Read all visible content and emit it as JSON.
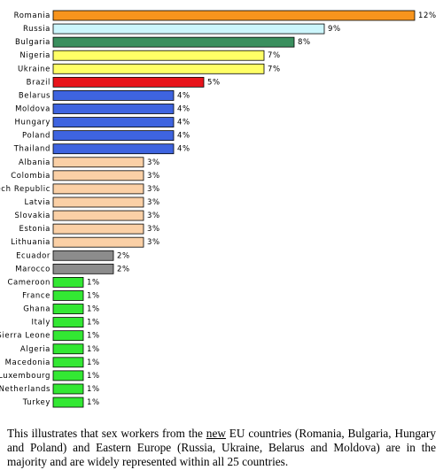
{
  "chart_data": {
    "type": "bar",
    "orientation": "horizontal",
    "categories": [
      "Romania",
      "Russia",
      "Bulgaria",
      "Nigeria",
      "Ukraine",
      "Brazil",
      "Belarus",
      "Moldova",
      "Hungary",
      "Poland",
      "Thailand",
      "Albania",
      "Colombia",
      "ech Republic",
      "Latvia",
      "Slovakia",
      "Estonia",
      "Lithuania",
      "Ecuador",
      "Marocco",
      "Cameroon",
      "France",
      "Ghana",
      "Italy",
      "Sierra Leone",
      "Algeria",
      "Macedonia",
      "Luxembourg",
      "Netherlands",
      "Turkey"
    ],
    "values": [
      12,
      9,
      8,
      7,
      7,
      5,
      4,
      4,
      4,
      4,
      4,
      3,
      3,
      3,
      3,
      3,
      3,
      3,
      2,
      2,
      1,
      1,
      1,
      1,
      1,
      1,
      1,
      1,
      1,
      1
    ],
    "value_labels": [
      "12%",
      "9%",
      "8%",
      "7%",
      "7%",
      "5%",
      "4%",
      "4%",
      "4%",
      "4%",
      "4%",
      "3%",
      "3%",
      "3%",
      "3%",
      "3%",
      "3%",
      "3%",
      "2%",
      "2%",
      "1%",
      "1%",
      "1%",
      "1%",
      "1%",
      "1%",
      "1%",
      "1%",
      "1%",
      "1%"
    ],
    "colors": [
      "#f7941d",
      "#ccf6fc",
      "#3a8f5e",
      "#ffff66",
      "#ffff66",
      "#e8141b",
      "#3e64e0",
      "#3e64e0",
      "#3e64e0",
      "#3e64e0",
      "#3e64e0",
      "#fbd0a6",
      "#fbd0a6",
      "#fbd0a6",
      "#fbd0a6",
      "#fbd0a6",
      "#fbd0a6",
      "#fbd0a6",
      "#8c8c8c",
      "#8c8c8c",
      "#33e833",
      "#33e833",
      "#33e833",
      "#33e833",
      "#33e833",
      "#33e833",
      "#33e833",
      "#33e833",
      "#33e833",
      "#33e833"
    ]
  },
  "caption": {
    "before": "This illustrates that sex workers from the ",
    "underlined": "new",
    "after": " EU countries (Romania, Bulgaria, Hungary and Poland) and Eastern Europe (Russia, Ukraine, Belarus and Moldova) are in the majority and are widely represented within all 25 countries."
  }
}
